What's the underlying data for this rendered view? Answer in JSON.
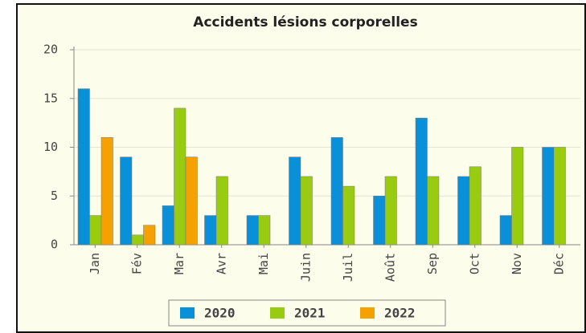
{
  "chart_data": {
    "type": "bar",
    "title": "Accidents lésions corporelles",
    "categories": [
      "Jan",
      "Fév",
      "Mar",
      "Avr",
      "Mai",
      "Juin",
      "Juil",
      "Août",
      "Sep",
      "Oct",
      "Nov",
      "Déc"
    ],
    "series": [
      {
        "name": "2020",
        "color": "#0a90d8",
        "values": [
          16,
          9,
          4,
          3,
          3,
          9,
          11,
          5,
          13,
          7,
          3,
          10
        ]
      },
      {
        "name": "2021",
        "color": "#99cc11",
        "values": [
          3,
          1,
          14,
          7,
          3,
          7,
          6,
          7,
          7,
          8,
          10,
          10
        ]
      },
      {
        "name": "2022",
        "color": "#f5a100",
        "values": [
          11,
          2,
          9,
          null,
          null,
          null,
          null,
          null,
          null,
          null,
          null,
          null
        ]
      }
    ],
    "ylim": [
      0,
      20
    ],
    "yticks": [
      0,
      5,
      10,
      15,
      20
    ],
    "grid": true,
    "legend": "bottom"
  }
}
